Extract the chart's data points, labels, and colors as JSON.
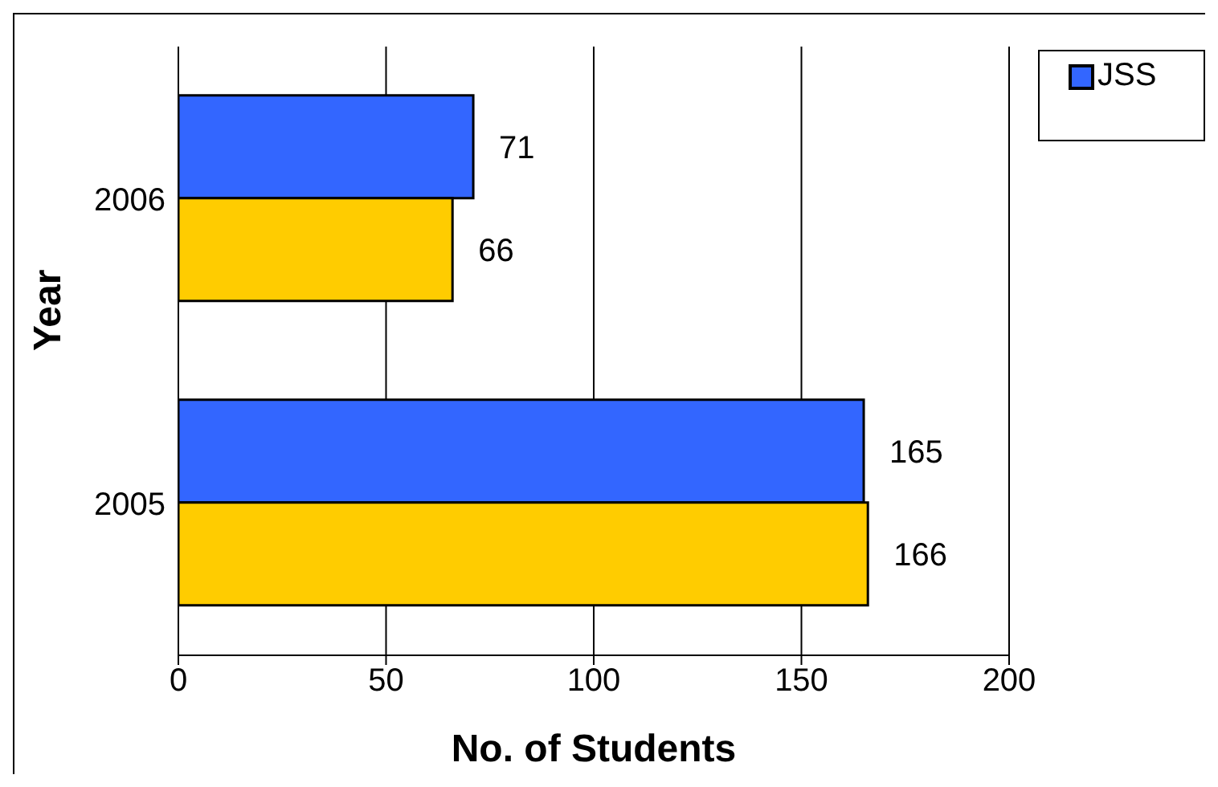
{
  "chart_data": {
    "type": "bar",
    "orientation": "horizontal",
    "categories": [
      "2006",
      "2005"
    ],
    "series": [
      {
        "name": "JSS",
        "color": "#3366ff",
        "values": [
          71,
          165
        ]
      },
      {
        "color": "#ffcc00",
        "values": [
          66,
          166
        ]
      }
    ],
    "xlim": [
      0,
      200
    ],
    "xticks": [
      0,
      50,
      100,
      150,
      200
    ],
    "xlabel": "No. of Students",
    "ylabel": "Year",
    "grid": "x",
    "legend": "top right",
    "data_labels": true
  }
}
